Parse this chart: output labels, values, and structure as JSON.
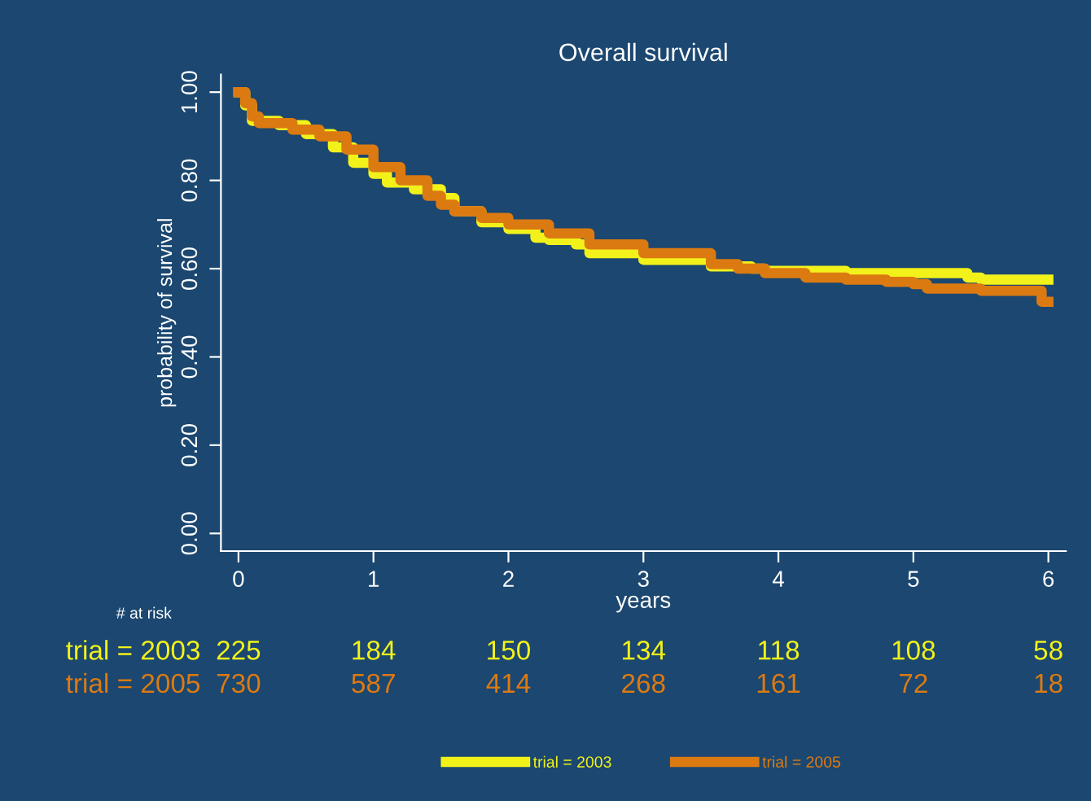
{
  "chart_data": {
    "type": "step",
    "title": "Overall survival",
    "xlabel": "years",
    "ylabel": "probability of survival",
    "xlim": [
      -0.13,
      6.13
    ],
    "xticks": [
      0,
      1,
      2,
      3,
      4,
      5,
      6
    ],
    "ylim": [
      -0.04,
      1.04
    ],
    "yticks": [
      {
        "value": 0,
        "label": "0.00"
      },
      {
        "value": 0.2,
        "label": "0.20"
      },
      {
        "value": 0.4,
        "label": "0.40"
      },
      {
        "value": 0.6,
        "label": "0.60"
      },
      {
        "value": 0.8,
        "label": "0.80"
      },
      {
        "value": 1,
        "label": "1.00"
      }
    ],
    "grid": false,
    "legend": "bottom",
    "marker": "none",
    "line_style": "solid",
    "series": [
      {
        "name": "trial = 2003",
        "color": "#f2f21a",
        "x": [
          0,
          0.05,
          0.1,
          0.3,
          0.5,
          0.7,
          0.85,
          1.0,
          1.1,
          1.3,
          1.5,
          1.6,
          1.8,
          2.0,
          2.2,
          2.3,
          2.5,
          2.6,
          3.0,
          3.5,
          3.8,
          3.9,
          4.5,
          5.0,
          5.4,
          5.5,
          6.0
        ],
        "values": [
          1.0,
          0.97,
          0.935,
          0.925,
          0.905,
          0.875,
          0.84,
          0.815,
          0.795,
          0.78,
          0.76,
          0.73,
          0.705,
          0.69,
          0.67,
          0.665,
          0.655,
          0.635,
          0.62,
          0.605,
          0.6,
          0.595,
          0.59,
          0.59,
          0.58,
          0.575,
          0.575
        ]
      },
      {
        "name": "trial = 2005",
        "color": "#dc7a12",
        "x": [
          0,
          0.05,
          0.1,
          0.15,
          0.4,
          0.6,
          0.8,
          1.0,
          1.2,
          1.4,
          1.5,
          1.6,
          1.8,
          2.0,
          2.3,
          2.6,
          3.0,
          3.5,
          3.7,
          3.9,
          4.2,
          4.5,
          4.8,
          5.0,
          5.1,
          5.5,
          5.95,
          6.0
        ],
        "values": [
          1.0,
          0.975,
          0.945,
          0.93,
          0.915,
          0.9,
          0.87,
          0.83,
          0.8,
          0.765,
          0.745,
          0.73,
          0.715,
          0.7,
          0.68,
          0.655,
          0.635,
          0.61,
          0.6,
          0.59,
          0.58,
          0.575,
          0.57,
          0.565,
          0.555,
          0.55,
          0.525,
          0.525
        ]
      }
    ],
    "annotations": [
      "# at risk",
      "trial = 2003",
      "225",
      "184",
      "150",
      "134",
      "118",
      "108",
      "58",
      "trial = 2005",
      "730",
      "587",
      "414",
      "268",
      "161",
      "72",
      "18"
    ]
  }
}
